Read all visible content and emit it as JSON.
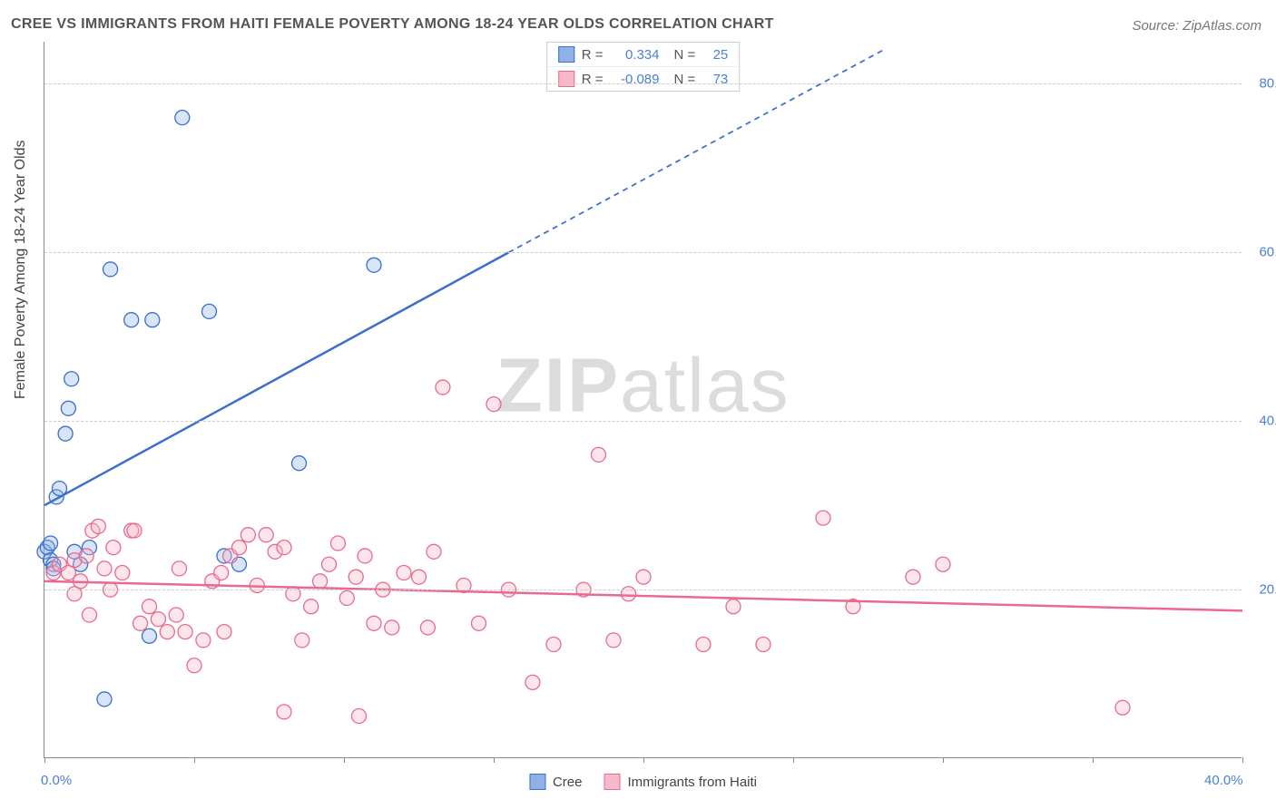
{
  "title": "CREE VS IMMIGRANTS FROM HAITI FEMALE POVERTY AMONG 18-24 YEAR OLDS CORRELATION CHART",
  "source": "Source: ZipAtlas.com",
  "watermark_1": "ZIP",
  "watermark_2": "atlas",
  "y_axis_title": "Female Poverty Among 18-24 Year Olds",
  "chart": {
    "type": "scatter",
    "background_color": "#ffffff",
    "grid_color": "#cccccc",
    "axis_color": "#888888",
    "tick_label_color": "#4a7fd4",
    "axis_title_color": "#444444",
    "xlim": [
      0,
      40
    ],
    "ylim": [
      0,
      85
    ],
    "x_ticks": [
      0,
      5,
      10,
      15,
      20,
      25,
      30,
      35,
      40
    ],
    "x_tick_labels": {
      "0": "0.0%",
      "40": "40.0%"
    },
    "y_ticks": [
      20,
      40,
      60,
      80
    ],
    "y_tick_labels": {
      "20": "20.0%",
      "40": "40.0%",
      "60": "60.0%",
      "80": "80.0%"
    },
    "marker_radius": 8,
    "marker_fill_opacity": 0.35,
    "line_width": 2.5,
    "dash_pattern": "6,5"
  },
  "series": [
    {
      "name": "Cree",
      "color_stroke": "#3b6fc9",
      "color_fill": "#8fb1e8",
      "r_value": "0.334",
      "n_value": "25",
      "trend": {
        "x1": 0,
        "y1": 30,
        "x2": 15.5,
        "y2": 60,
        "dash_x2": 28,
        "dash_y2": 84
      },
      "points": [
        [
          0.0,
          24.5
        ],
        [
          0.1,
          25.0
        ],
        [
          0.2,
          23.5
        ],
        [
          0.3,
          23.0
        ],
        [
          0.3,
          22.5
        ],
        [
          0.2,
          25.5
        ],
        [
          0.4,
          31.0
        ],
        [
          0.5,
          32.0
        ],
        [
          0.7,
          38.5
        ],
        [
          0.8,
          41.5
        ],
        [
          0.9,
          45.0
        ],
        [
          2.2,
          58.0
        ],
        [
          2.9,
          52.0
        ],
        [
          3.6,
          52.0
        ],
        [
          5.5,
          53.0
        ],
        [
          4.6,
          76.0
        ],
        [
          11.0,
          58.5
        ],
        [
          2.0,
          7.0
        ],
        [
          3.5,
          14.5
        ],
        [
          6.0,
          24.0
        ],
        [
          6.5,
          23.0
        ],
        [
          8.5,
          35.0
        ],
        [
          1.5,
          25.0
        ],
        [
          1.0,
          24.5
        ],
        [
          1.2,
          23.0
        ]
      ]
    },
    {
      "name": "Immigrants from Haiti",
      "color_stroke": "#e86a8f",
      "color_fill": "#f7b8c9",
      "r_value": "-0.089",
      "n_value": "73",
      "trend": {
        "x1": 0,
        "y1": 21,
        "x2": 40,
        "y2": 17.5,
        "dash_x2": 40,
        "dash_y2": 17.5
      },
      "points": [
        [
          0.3,
          22.0
        ],
        [
          0.5,
          23.0
        ],
        [
          0.8,
          22.0
        ],
        [
          1.0,
          23.5
        ],
        [
          1.2,
          21.0
        ],
        [
          1.4,
          24.0
        ],
        [
          1.6,
          27.0
        ],
        [
          1.8,
          27.5
        ],
        [
          2.0,
          22.5
        ],
        [
          2.3,
          25.0
        ],
        [
          2.6,
          22.0
        ],
        [
          2.9,
          27.0
        ],
        [
          3.2,
          16.0
        ],
        [
          3.5,
          18.0
        ],
        [
          3.8,
          16.5
        ],
        [
          4.1,
          15.0
        ],
        [
          4.4,
          17.0
        ],
        [
          4.7,
          15.0
        ],
        [
          5.0,
          11.0
        ],
        [
          5.3,
          14.0
        ],
        [
          5.6,
          21.0
        ],
        [
          5.9,
          22.0
        ],
        [
          6.2,
          24.0
        ],
        [
          6.5,
          25.0
        ],
        [
          6.8,
          26.5
        ],
        [
          7.1,
          20.5
        ],
        [
          7.4,
          26.5
        ],
        [
          7.7,
          24.5
        ],
        [
          8.0,
          25.0
        ],
        [
          8.3,
          19.5
        ],
        [
          8.6,
          14.0
        ],
        [
          8.9,
          18.0
        ],
        [
          9.2,
          21.0
        ],
        [
          9.5,
          23.0
        ],
        [
          9.8,
          25.5
        ],
        [
          10.1,
          19.0
        ],
        [
          10.4,
          21.5
        ],
        [
          10.7,
          24.0
        ],
        [
          11.0,
          16.0
        ],
        [
          11.3,
          20.0
        ],
        [
          11.6,
          15.5
        ],
        [
          12.0,
          22.0
        ],
        [
          12.5,
          21.5
        ],
        [
          13.0,
          24.5
        ],
        [
          13.3,
          44.0
        ],
        [
          14.0,
          20.5
        ],
        [
          14.5,
          16.0
        ],
        [
          15.0,
          42.0
        ],
        [
          15.5,
          20.0
        ],
        [
          16.3,
          9.0
        ],
        [
          17.0,
          13.5
        ],
        [
          18.0,
          20.0
        ],
        [
          18.5,
          36.0
        ],
        [
          19.0,
          14.0
        ],
        [
          19.5,
          19.5
        ],
        [
          20.0,
          21.5
        ],
        [
          22.0,
          13.5
        ],
        [
          23.0,
          18.0
        ],
        [
          24.0,
          13.5
        ],
        [
          26.0,
          28.5
        ],
        [
          27.0,
          18.0
        ],
        [
          29.0,
          21.5
        ],
        [
          30.0,
          23.0
        ],
        [
          36.0,
          6.0
        ],
        [
          8.0,
          5.5
        ],
        [
          10.5,
          5.0
        ],
        [
          6.0,
          15.0
        ],
        [
          4.5,
          22.5
        ],
        [
          1.0,
          19.5
        ],
        [
          1.5,
          17.0
        ],
        [
          2.2,
          20.0
        ],
        [
          3.0,
          27.0
        ],
        [
          12.8,
          15.5
        ]
      ]
    }
  ],
  "legend_bottom": [
    {
      "label": "Cree",
      "swatch_fill": "#8fb1e8",
      "swatch_stroke": "#3b6fc9"
    },
    {
      "label": "Immigrants from Haiti",
      "swatch_fill": "#f7b8c9",
      "swatch_stroke": "#e86a8f"
    }
  ],
  "legend_stats_labels": {
    "r": "R =",
    "n": "N ="
  }
}
